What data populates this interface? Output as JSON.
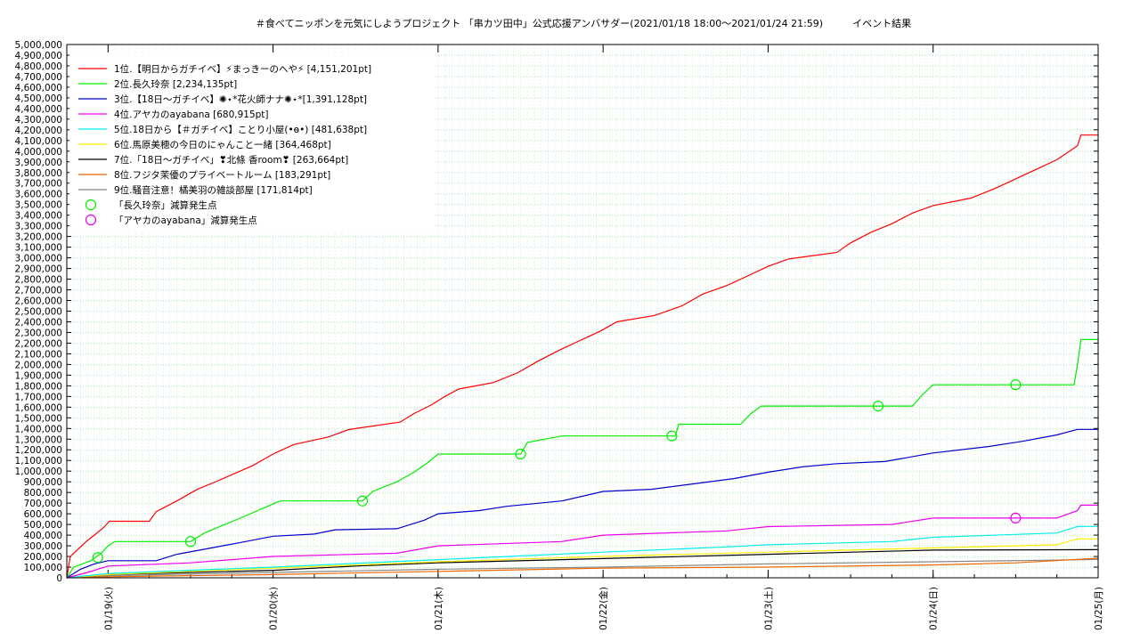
{
  "chart_data": {
    "type": "line",
    "title": "＃食べてニッポンを元気にしようプロジェクト 「串カツ田中」公式応援アンバサダー(2021/01/18 18:00〜2021/01/24 21:59)　　　イベント結果",
    "xlabel": "",
    "ylabel": "",
    "ylim": [
      0,
      5000000
    ],
    "yticks": [
      0,
      100000,
      200000,
      300000,
      400000,
      500000,
      600000,
      700000,
      800000,
      900000,
      1000000,
      1100000,
      1200000,
      1300000,
      1400000,
      1500000,
      1600000,
      1700000,
      1800000,
      1900000,
      2000000,
      2100000,
      2200000,
      2300000,
      2400000,
      2500000,
      2600000,
      2700000,
      2800000,
      2900000,
      3000000,
      3100000,
      3200000,
      3300000,
      3400000,
      3500000,
      3600000,
      3700000,
      3800000,
      3900000,
      4000000,
      4100000,
      4200000,
      4300000,
      4400000,
      4500000,
      4600000,
      4700000,
      4800000,
      4900000,
      5000000
    ],
    "ytick_labels": [
      "0",
      "100,000",
      "200,000",
      "300,000",
      "400,000",
      "500,000",
      "600,000",
      "700,000",
      "800,000",
      "900,000",
      "1,000,000",
      "1,100,000",
      "1,200,000",
      "1,300,000",
      "1,400,000",
      "1,500,000",
      "1,600,000",
      "1,700,000",
      "1,800,000",
      "1,900,000",
      "2,000,000",
      "2,100,000",
      "2,200,000",
      "2,300,000",
      "2,400,000",
      "2,500,000",
      "2,600,000",
      "2,700,000",
      "2,800,000",
      "2,900,000",
      "3,000,000",
      "3,100,000",
      "3,200,000",
      "3,300,000",
      "3,400,000",
      "3,500,000",
      "3,600,000",
      "3,700,000",
      "3,800,000",
      "3,900,000",
      "4,000,000",
      "4,100,000",
      "4,200,000",
      "4,300,000",
      "4,400,000",
      "4,500,000",
      "4,600,000",
      "4,700,000",
      "4,800,000",
      "4,900,000",
      "5,000,000"
    ],
    "xlim": [
      "2021-01-18 18:00",
      "2021-01-25 00:00"
    ],
    "xticks": [
      "2021-01-19 00:00",
      "2021-01-20 00:00",
      "2021-01-21 00:00",
      "2021-01-22 00:00",
      "2021-01-23 00:00",
      "2021-01-24 00:00",
      "2021-01-25 00:00"
    ],
    "xtick_labels": [
      "01/19(火)",
      "01/20(水)",
      "01/21(木)",
      "01/22(金)",
      "01/23(土)",
      "01/24(日)",
      "01/25(月)"
    ],
    "grid": true,
    "legend_position": "top-left",
    "series": [
      {
        "name": "1位.【明日からガチイベ】⚡まっきーのへや⚡ [4,151,201pt]",
        "color": "#ff0000",
        "points": [
          [
            "2021-01-18 18:00",
            0
          ],
          [
            "2021-01-18 18:30",
            200000
          ],
          [
            "2021-01-18 20:00",
            290000
          ],
          [
            "2021-01-18 21:00",
            350000
          ],
          [
            "2021-01-18 22:00",
            400000
          ],
          [
            "2021-01-18 23:30",
            480000
          ],
          [
            "2021-01-19 00:10",
            530000
          ],
          [
            "2021-01-19 06:00",
            530000
          ],
          [
            "2021-01-19 07:00",
            620000
          ],
          [
            "2021-01-19 10:00",
            720000
          ],
          [
            "2021-01-19 13:00",
            830000
          ],
          [
            "2021-01-19 16:00",
            910000
          ],
          [
            "2021-01-19 18:30",
            980000
          ],
          [
            "2021-01-19 21:00",
            1050000
          ],
          [
            "2021-01-20 00:00",
            1160000
          ],
          [
            "2021-01-20 03:00",
            1250000
          ],
          [
            "2021-01-20 08:00",
            1320000
          ],
          [
            "2021-01-20 11:00",
            1390000
          ],
          [
            "2021-01-20 18:30",
            1460000
          ],
          [
            "2021-01-20 20:30",
            1540000
          ],
          [
            "2021-01-20 23:00",
            1620000
          ],
          [
            "2021-01-21 01:00",
            1700000
          ],
          [
            "2021-01-21 03:00",
            1770000
          ],
          [
            "2021-01-21 08:00",
            1830000
          ],
          [
            "2021-01-21 11:30",
            1920000
          ],
          [
            "2021-01-21 14:30",
            2030000
          ],
          [
            "2021-01-21 17:30",
            2130000
          ],
          [
            "2021-01-21 20:30",
            2220000
          ],
          [
            "2021-01-21 23:30",
            2310000
          ],
          [
            "2021-01-22 02:00",
            2400000
          ],
          [
            "2021-01-22 07:30",
            2460000
          ],
          [
            "2021-01-22 11:30",
            2550000
          ],
          [
            "2021-01-22 14:30",
            2660000
          ],
          [
            "2021-01-22 18:00",
            2740000
          ],
          [
            "2021-01-22 21:00",
            2830000
          ],
          [
            "2021-01-23 00:00",
            2920000
          ],
          [
            "2021-01-23 03:00",
            2990000
          ],
          [
            "2021-01-23 10:00",
            3050000
          ],
          [
            "2021-01-23 12:00",
            3140000
          ],
          [
            "2021-01-23 15:00",
            3240000
          ],
          [
            "2021-01-23 18:00",
            3320000
          ],
          [
            "2021-01-23 21:00",
            3420000
          ],
          [
            "2021-01-24 00:00",
            3490000
          ],
          [
            "2021-01-24 05:30",
            3560000
          ],
          [
            "2021-01-24 09:00",
            3650000
          ],
          [
            "2021-01-24 12:00",
            3740000
          ],
          [
            "2021-01-24 15:00",
            3830000
          ],
          [
            "2021-01-24 18:00",
            3920000
          ],
          [
            "2021-01-24 21:00",
            4050000
          ],
          [
            "2021-01-24 21:30",
            4151201
          ],
          [
            "2021-01-25 00:00",
            4151201
          ]
        ]
      },
      {
        "name": "2位.長久玲奈 [2,234,135pt]",
        "color": "#00ee00",
        "points": [
          [
            "2021-01-18 18:00",
            0
          ],
          [
            "2021-01-18 19:00",
            100000
          ],
          [
            "2021-01-18 21:30",
            160000
          ],
          [
            "2021-01-18 23:00",
            230000
          ],
          [
            "2021-01-19 00:00",
            300000
          ],
          [
            "2021-01-19 01:00",
            340000
          ],
          [
            "2021-01-19 12:00",
            340000
          ],
          [
            "2021-01-19 14:00",
            420000
          ],
          [
            "2021-01-19 17:00",
            500000
          ],
          [
            "2021-01-19 20:00",
            580000
          ],
          [
            "2021-01-19 22:30",
            650000
          ],
          [
            "2021-01-20 01:00",
            720000
          ],
          [
            "2021-01-20 13:00",
            720000
          ],
          [
            "2021-01-20 14:30",
            810000
          ],
          [
            "2021-01-20 18:00",
            900000
          ],
          [
            "2021-01-20 20:30",
            990000
          ],
          [
            "2021-01-20 22:30",
            1080000
          ],
          [
            "2021-01-21 00:00",
            1160000
          ],
          [
            "2021-01-21 12:00",
            1160000
          ],
          [
            "2021-01-21 13:00",
            1270000
          ],
          [
            "2021-01-21 18:00",
            1330000
          ],
          [
            "2021-01-22 10:30",
            1330000
          ],
          [
            "2021-01-22 11:00",
            1440000
          ],
          [
            "2021-01-22 20:00",
            1440000
          ],
          [
            "2021-01-22 21:30",
            1540000
          ],
          [
            "2021-01-22 23:00",
            1610000
          ],
          [
            "2021-01-23 21:00",
            1610000
          ],
          [
            "2021-01-23 22:30",
            1720000
          ],
          [
            "2021-01-24 00:00",
            1810000
          ],
          [
            "2021-01-24 20:30",
            1810000
          ],
          [
            "2021-01-24 21:00",
            2000000
          ],
          [
            "2021-01-24 21:30",
            2234135
          ],
          [
            "2021-01-25 00:00",
            2234135
          ]
        ]
      },
      {
        "name": "3位.【18日〜ガチイベ】✺⋆*花火師ナナ✺⋆*[1,391,128pt]",
        "color": "#0000cc",
        "points": [
          [
            "2021-01-18 18:00",
            0
          ],
          [
            "2021-01-18 20:00",
            80000
          ],
          [
            "2021-01-18 22:00",
            130000
          ],
          [
            "2021-01-19 00:00",
            160000
          ],
          [
            "2021-01-19 07:00",
            160000
          ],
          [
            "2021-01-19 10:00",
            220000
          ],
          [
            "2021-01-19 15:00",
            280000
          ],
          [
            "2021-01-19 20:00",
            340000
          ],
          [
            "2021-01-20 00:00",
            390000
          ],
          [
            "2021-01-20 06:00",
            410000
          ],
          [
            "2021-01-20 09:00",
            450000
          ],
          [
            "2021-01-20 18:00",
            460000
          ],
          [
            "2021-01-20 22:00",
            540000
          ],
          [
            "2021-01-21 00:00",
            600000
          ],
          [
            "2021-01-21 06:00",
            630000
          ],
          [
            "2021-01-21 10:00",
            670000
          ],
          [
            "2021-01-21 18:00",
            720000
          ],
          [
            "2021-01-22 00:00",
            810000
          ],
          [
            "2021-01-22 07:00",
            830000
          ],
          [
            "2021-01-22 13:00",
            880000
          ],
          [
            "2021-01-22 19:00",
            930000
          ],
          [
            "2021-01-23 00:00",
            990000
          ],
          [
            "2021-01-23 05:00",
            1040000
          ],
          [
            "2021-01-23 10:00",
            1070000
          ],
          [
            "2021-01-23 17:00",
            1090000
          ],
          [
            "2021-01-24 00:00",
            1170000
          ],
          [
            "2021-01-24 08:00",
            1230000
          ],
          [
            "2021-01-24 13:00",
            1280000
          ],
          [
            "2021-01-24 18:00",
            1340000
          ],
          [
            "2021-01-24 21:00",
            1391128
          ],
          [
            "2021-01-25 00:00",
            1391128
          ]
        ]
      },
      {
        "name": "4位.アヤカのayabana [680,915pt]",
        "color": "#ee00ee",
        "points": [
          [
            "2021-01-18 18:00",
            0
          ],
          [
            "2021-01-18 21:00",
            50000
          ],
          [
            "2021-01-19 00:00",
            110000
          ],
          [
            "2021-01-19 12:00",
            140000
          ],
          [
            "2021-01-20 00:00",
            200000
          ],
          [
            "2021-01-20 18:00",
            230000
          ],
          [
            "2021-01-21 00:00",
            300000
          ],
          [
            "2021-01-21 18:00",
            340000
          ],
          [
            "2021-01-22 00:00",
            400000
          ],
          [
            "2021-01-22 18:00",
            440000
          ],
          [
            "2021-01-23 00:00",
            480000
          ],
          [
            "2021-01-23 18:00",
            500000
          ],
          [
            "2021-01-24 00:00",
            560000
          ],
          [
            "2021-01-24 18:00",
            560000
          ],
          [
            "2021-01-24 21:00",
            630000
          ],
          [
            "2021-01-24 21:30",
            680915
          ],
          [
            "2021-01-25 00:00",
            680915
          ]
        ]
      },
      {
        "name": "5位.18日から【＃ガチイベ】ことり小屋(•ө•) [481,638pt]",
        "color": "#00eeee",
        "points": [
          [
            "2021-01-18 18:00",
            0
          ],
          [
            "2021-01-19 00:00",
            40000
          ],
          [
            "2021-01-20 00:00",
            100000
          ],
          [
            "2021-01-21 00:00",
            170000
          ],
          [
            "2021-01-22 00:00",
            240000
          ],
          [
            "2021-01-22 18:00",
            290000
          ],
          [
            "2021-01-23 00:00",
            310000
          ],
          [
            "2021-01-23 18:00",
            340000
          ],
          [
            "2021-01-24 00:00",
            380000
          ],
          [
            "2021-01-24 18:00",
            420000
          ],
          [
            "2021-01-24 21:00",
            481638
          ],
          [
            "2021-01-25 00:00",
            481638
          ]
        ]
      },
      {
        "name": "6位.馬原美穂の今日のにゃんこと一緒 [364,468pt]",
        "color": "#ffee00",
        "points": [
          [
            "2021-01-18 18:00",
            0
          ],
          [
            "2021-01-19 00:00",
            30000
          ],
          [
            "2021-01-20 00:00",
            90000
          ],
          [
            "2021-01-21 00:00",
            150000
          ],
          [
            "2021-01-22 00:00",
            200000
          ],
          [
            "2021-01-23 00:00",
            240000
          ],
          [
            "2021-01-24 00:00",
            280000
          ],
          [
            "2021-01-24 18:00",
            310000
          ],
          [
            "2021-01-24 21:00",
            364468
          ],
          [
            "2021-01-25 00:00",
            364468
          ]
        ]
      },
      {
        "name": "7位.「18日〜ガチイベ」❣北條 香room❣ [263,664pt]",
        "color": "#000000",
        "points": [
          [
            "2021-01-18 18:00",
            0
          ],
          [
            "2021-01-19 00:00",
            30000
          ],
          [
            "2021-01-20 00:00",
            70000
          ],
          [
            "2021-01-20 12:00",
            110000
          ],
          [
            "2021-01-21 00:00",
            140000
          ],
          [
            "2021-01-22 00:00",
            180000
          ],
          [
            "2021-01-23 00:00",
            220000
          ],
          [
            "2021-01-24 00:00",
            260000
          ],
          [
            "2021-01-25 00:00",
            263664
          ]
        ]
      },
      {
        "name": "8位.フジタ茉優のプライベートルーム [183,291pt]",
        "color": "#ee6600",
        "points": [
          [
            "2021-01-18 18:00",
            0
          ],
          [
            "2021-01-19 00:00",
            10000
          ],
          [
            "2021-01-20 00:00",
            30000
          ],
          [
            "2021-01-21 00:00",
            60000
          ],
          [
            "2021-01-22 00:00",
            90000
          ],
          [
            "2021-01-23 00:00",
            100000
          ],
          [
            "2021-01-24 00:00",
            120000
          ],
          [
            "2021-01-24 12:00",
            140000
          ],
          [
            "2021-01-25 00:00",
            183291
          ]
        ]
      },
      {
        "name": "9位.騒音注意！橘美羽の雑談部屋 [171,814pt]",
        "color": "#888888",
        "points": [
          [
            "2021-01-18 18:00",
            0
          ],
          [
            "2021-01-19 00:00",
            20000
          ],
          [
            "2021-01-20 00:00",
            50000
          ],
          [
            "2021-01-21 00:00",
            80000
          ],
          [
            "2021-01-22 00:00",
            100000
          ],
          [
            "2021-01-23 00:00",
            130000
          ],
          [
            "2021-01-24 00:00",
            150000
          ],
          [
            "2021-01-25 00:00",
            171814
          ]
        ]
      }
    ],
    "markers": [
      {
        "name": "「長久玲奈」減算発生点",
        "color": "#00ee00",
        "points": [
          [
            "2021-01-18 22:30",
            190000
          ],
          [
            "2021-01-19 12:00",
            340000
          ],
          [
            "2021-01-20 13:00",
            720000
          ],
          [
            "2021-01-21 12:00",
            1160000
          ],
          [
            "2021-01-22 10:00",
            1330000
          ],
          [
            "2021-01-23 16:00",
            1610000
          ],
          [
            "2021-01-24 12:00",
            1810000
          ]
        ]
      },
      {
        "name": "「アヤカのayabana」減算発生点",
        "color": "#ee00ee",
        "points": [
          [
            "2021-01-24 12:00",
            560000
          ]
        ]
      }
    ]
  }
}
